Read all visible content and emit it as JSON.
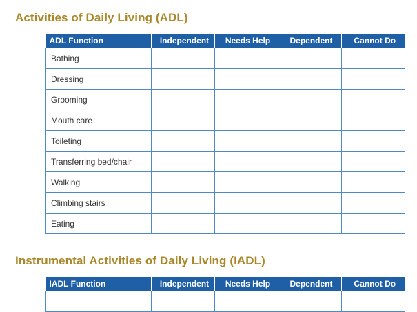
{
  "adl": {
    "title": "Activities of Daily Living (ADL)",
    "headers": [
      "ADL Function",
      "Independent",
      "Needs Help",
      "Dependent",
      "Cannot Do"
    ],
    "rows": [
      "Bathing",
      "Dressing",
      "Grooming",
      "Mouth care",
      "Toileting",
      "Transferring bed/chair",
      "Walking",
      "Climbing stairs",
      "Eating"
    ]
  },
  "iadl": {
    "title": "Instrumental Activities of Daily Living (IADL)",
    "headers": [
      "IADL Function",
      "Independent",
      "Needs Help",
      "Dependent",
      "Cannot Do"
    ]
  },
  "colors": {
    "title": "#a9872a",
    "header_bg": "#1f5fa6",
    "border": "#4f8ac6"
  }
}
